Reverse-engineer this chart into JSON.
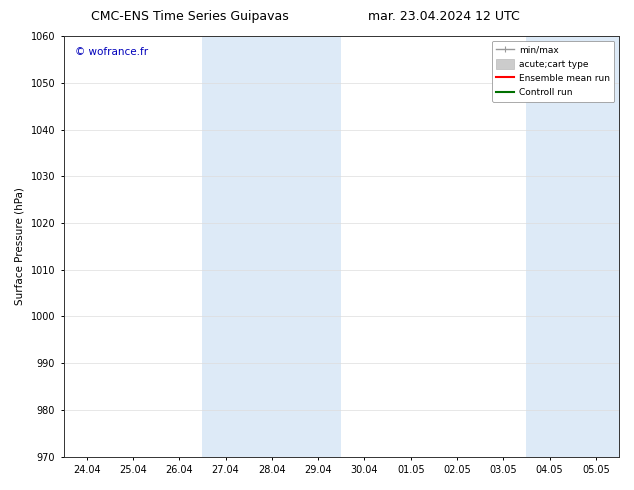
{
  "title": "CMC-ENS Time Series Guipavas",
  "title_right": "mar. 23.04.2024 12 UTC",
  "ylabel": "Surface Pressure (hPa)",
  "ylim": [
    970,
    1060
  ],
  "yticks": [
    970,
    980,
    990,
    1000,
    1010,
    1020,
    1030,
    1040,
    1050,
    1060
  ],
  "xtick_labels": [
    "24.04",
    "25.04",
    "26.04",
    "27.04",
    "28.04",
    "29.04",
    "30.04",
    "01.05",
    "02.05",
    "03.05",
    "04.05",
    "05.05"
  ],
  "xtick_positions": [
    0,
    1,
    2,
    3,
    4,
    5,
    6,
    7,
    8,
    9,
    10,
    11
  ],
  "xlim": [
    -0.5,
    11.5
  ],
  "shade_regions": [
    {
      "xmin": 2.5,
      "xmax": 5.5,
      "color": "#ddeaf7"
    },
    {
      "xmin": 9.5,
      "xmax": 11.5,
      "color": "#ddeaf7"
    }
  ],
  "legend_items": [
    {
      "label": "min/max",
      "color": "#999999",
      "lw": 1.0
    },
    {
      "label": "acute;cart type",
      "color": "#cccccc",
      "lw": 6
    },
    {
      "label": "Ensemble mean run",
      "color": "#ff0000",
      "lw": 1.5
    },
    {
      "label": "Controll run",
      "color": "#007000",
      "lw": 1.5
    }
  ],
  "watermark_text": "© wofrance.fr",
  "watermark_color": "#0000bb",
  "watermark_fontsize": 7.5,
  "bg_color": "#ffffff",
  "grid_color": "#dddddd",
  "title_fontsize": 9,
  "ylabel_fontsize": 7.5,
  "tick_fontsize": 7,
  "legend_fontsize": 6.5
}
